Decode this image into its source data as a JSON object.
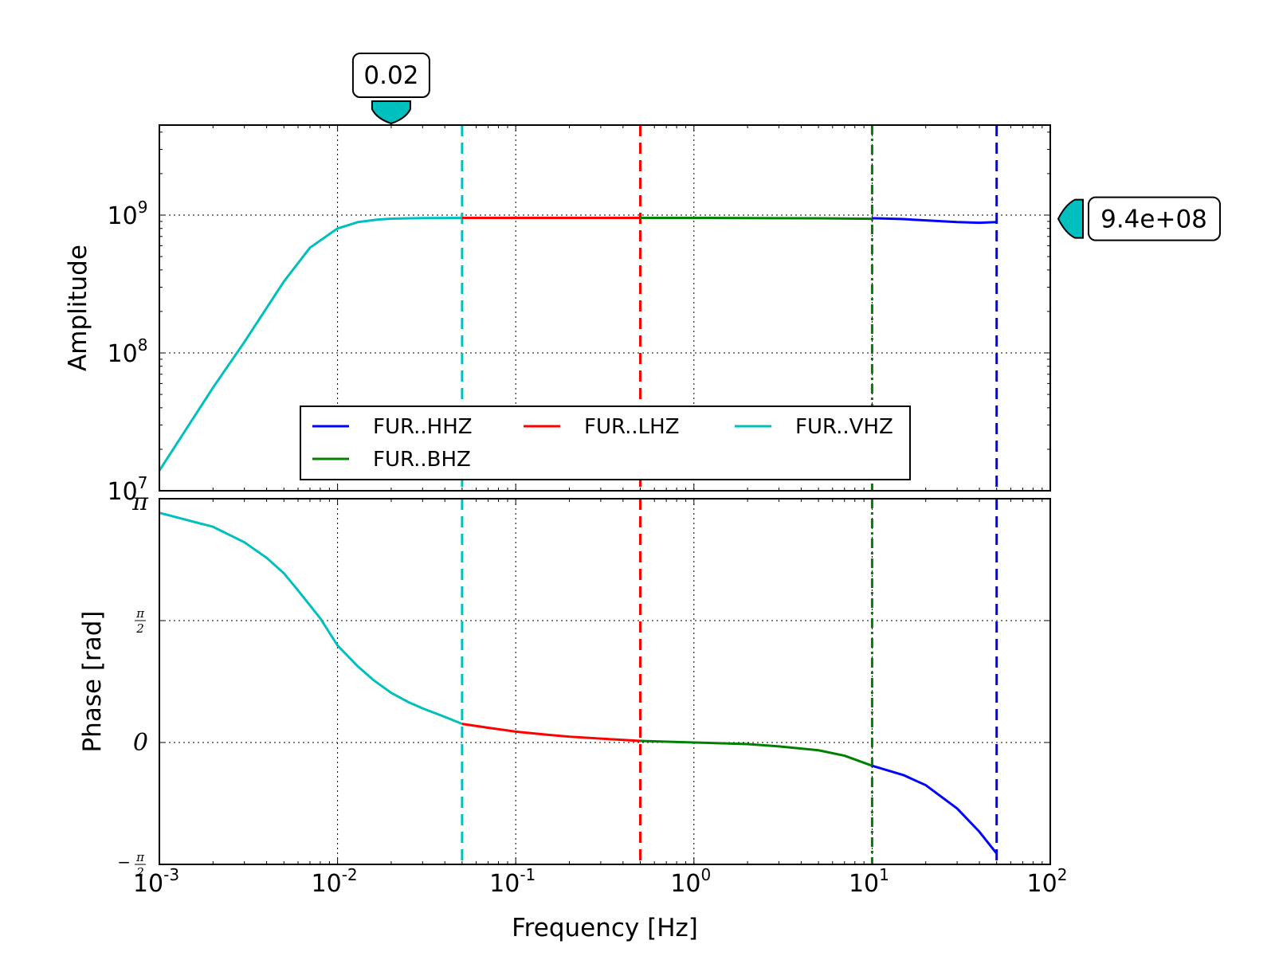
{
  "chart_data": {
    "type": "line",
    "xlabel": "Frequency [Hz]",
    "xscale": "log",
    "xlim": [
      0.001,
      100
    ],
    "x_ticks": [
      {
        "base": "10",
        "exp": "-3"
      },
      {
        "base": "10",
        "exp": "-2"
      },
      {
        "base": "10",
        "exp": "-1"
      },
      {
        "base": "10",
        "exp": "0"
      },
      {
        "base": "10",
        "exp": "1"
      },
      {
        "base": "10",
        "exp": "2"
      }
    ],
    "grid": true,
    "amplitude": {
      "ylabel": "Amplitude",
      "yscale": "log",
      "ylim": [
        10000000,
        4500000000
      ],
      "y_ticks": [
        {
          "base": "10",
          "exp": "7"
        },
        {
          "base": "10",
          "exp": "8"
        },
        {
          "base": "10",
          "exp": "9"
        }
      ]
    },
    "phase": {
      "ylabel": "Phase [rad]",
      "ylim": [
        -1.5708,
        3.1416
      ],
      "y_ticks": [
        {
          "value": 3.1416,
          "label": "π"
        },
        {
          "value": 1.5708,
          "num": "π",
          "den": "2"
        },
        {
          "value": 0,
          "label": "0"
        },
        {
          "value": -1.5708,
          "minus": "−",
          "num": "π",
          "den": "2"
        }
      ]
    },
    "legend": {
      "placement": "lower-center",
      "columns": 3,
      "entries": [
        "FUR..HHZ",
        "FUR..BHZ",
        "FUR..LHZ",
        "FUR..VHZ"
      ]
    },
    "series": [
      {
        "name": "FUR..HHZ",
        "color": "#0000ff",
        "dash": "solid",
        "cutoff_hz": 50,
        "amplitude": {
          "x": [
            10,
            15,
            20,
            30,
            40,
            50
          ],
          "y": [
            950000000,
            935000000,
            915000000,
            890000000,
            880000000,
            890000000
          ]
        },
        "phase": {
          "x": [
            10,
            15,
            20,
            30,
            40,
            50
          ],
          "y": [
            -0.3,
            -0.42,
            -0.55,
            -0.85,
            -1.15,
            -1.43
          ]
        }
      },
      {
        "name": "FUR..LHZ",
        "color": "#ff0000",
        "dash": "solid",
        "cutoff_hz": 0.5,
        "amplitude": {
          "x": [
            0.05,
            0.1,
            0.2,
            0.5
          ],
          "y": [
            955000000,
            955000000,
            955000000,
            955000000
          ]
        },
        "phase": {
          "x": [
            0.05,
            0.07,
            0.1,
            0.15,
            0.2,
            0.3,
            0.5
          ],
          "y": [
            0.24,
            0.19,
            0.14,
            0.1,
            0.075,
            0.05,
            0.02
          ]
        }
      },
      {
        "name": "FUR..BHZ",
        "color": "#008000",
        "dash": "solid",
        "cutoff_hz": 10,
        "amplitude": {
          "x": [
            0.5,
            1,
            2,
            5,
            10
          ],
          "y": [
            955000000,
            955000000,
            952000000,
            948000000,
            940000000
          ]
        },
        "phase": {
          "x": [
            0.5,
            1,
            2,
            3,
            5,
            7,
            10
          ],
          "y": [
            0.02,
            0,
            -0.02,
            -0.05,
            -0.1,
            -0.17,
            -0.3
          ]
        }
      },
      {
        "name": "FUR..VHZ",
        "color": "#00bfbf",
        "dash": "solid",
        "cutoff_hz": 0.05,
        "amplitude": {
          "x": [
            0.001,
            0.002,
            0.003,
            0.005,
            0.007,
            0.01,
            0.013,
            0.017,
            0.02,
            0.03,
            0.05
          ],
          "y": [
            14000000,
            56000000,
            120000000,
            330000000,
            580000000,
            800000000,
            890000000,
            930000000,
            942000000,
            952000000,
            955000000
          ]
        },
        "phase": {
          "x": [
            0.001,
            0.002,
            0.003,
            0.004,
            0.005,
            0.006,
            0.008,
            0.01,
            0.013,
            0.016,
            0.02,
            0.025,
            0.03,
            0.04,
            0.05
          ],
          "y": [
            2.96,
            2.78,
            2.58,
            2.38,
            2.18,
            1.96,
            1.6,
            1.25,
            0.98,
            0.8,
            0.64,
            0.52,
            0.44,
            0.33,
            0.24
          ]
        }
      }
    ],
    "annotations": [
      {
        "label": "0.02",
        "x": 0.02,
        "axis": "frequency",
        "color": "#00bfbf"
      },
      {
        "label": "9.4e+08",
        "y": 940000000,
        "axis": "amplitude",
        "color": "#00bfbf"
      }
    ]
  }
}
